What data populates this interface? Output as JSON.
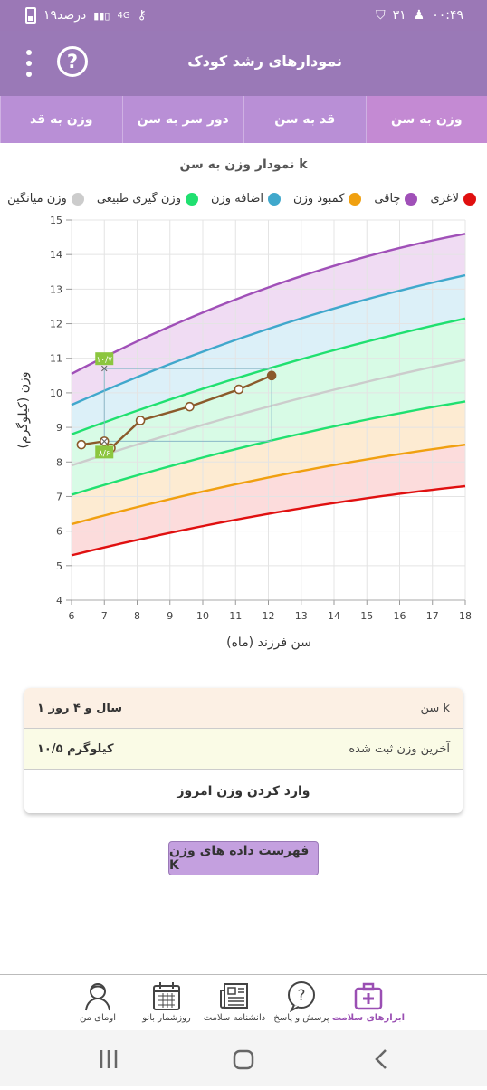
{
  "status": {
    "time": "۰۰:۴۹",
    "notif": "۳۱",
    "battery": "۱۹درصد",
    "net": "4G"
  },
  "appbar": {
    "title": "نمودارهای رشد کودک",
    "help": "?"
  },
  "tabs": [
    {
      "label": "وزن به سن",
      "active": true
    },
    {
      "label": "قد به سن",
      "active": false
    },
    {
      "label": "دور سر به سن",
      "active": false
    },
    {
      "label": "وزن به قد",
      "active": false
    }
  ],
  "chart_title": "نمودار وزن به سن k",
  "legend": [
    {
      "label": "لاغری",
      "color": "#e01010"
    },
    {
      "label": "چاقی",
      "color": "#a050b8"
    },
    {
      "label": "کمبود وزن",
      "color": "#f0a010"
    },
    {
      "label": "اضافه وزن",
      "color": "#40a8cc"
    },
    {
      "label": "وزن گیری طبیعی",
      "color": "#20e070"
    },
    {
      "label": "وزن میانگین",
      "color": "#cccccc"
    }
  ],
  "chart_data": {
    "type": "line",
    "xlabel": "سن فرزند (ماه)",
    "ylabel": "وزن (کیلوگرم)",
    "xlim": [
      6,
      18
    ],
    "ylim": [
      4,
      15
    ],
    "x_ticks": [
      "6",
      "7",
      "8",
      "9",
      "10",
      "11",
      "12",
      "13",
      "14",
      "15",
      "16",
      "17",
      "18"
    ],
    "y_ticks": [
      "4",
      "5",
      "6",
      "7",
      "8",
      "9",
      "10",
      "11",
      "12",
      "13",
      "14",
      "15"
    ],
    "grid": true,
    "curves": [
      {
        "name": "چاقی",
        "color": "#a050b8",
        "x": [
          6,
          12,
          18
        ],
        "y": [
          10.55,
          13.05,
          14.6
        ]
      },
      {
        "name": "اضافه وزن",
        "color": "#40a8cc",
        "x": [
          6,
          12,
          18
        ],
        "y": [
          9.65,
          11.85,
          13.4
        ]
      },
      {
        "name": "وزن گیری طبیعی",
        "color": "#20e070",
        "x": [
          6,
          12,
          18
        ],
        "y": [
          8.8,
          10.7,
          12.15
        ]
      },
      {
        "name": "وزن میانگین",
        "color": "#cccccc",
        "x": [
          6,
          12,
          18
        ],
        "y": [
          7.9,
          9.6,
          10.95
        ]
      },
      {
        "name": "وزن گیری طبیعی",
        "color": "#20e070",
        "x": [
          6,
          12,
          18
        ],
        "y": [
          7.05,
          8.6,
          9.75
        ]
      },
      {
        "name": "کمبود وزن",
        "color": "#f0a010",
        "x": [
          6,
          12,
          18
        ],
        "y": [
          6.2,
          7.55,
          8.5
        ]
      },
      {
        "name": "لاغری",
        "color": "#e01010",
        "x": [
          6,
          12,
          18
        ],
        "y": [
          5.3,
          6.5,
          7.3
        ]
      }
    ],
    "bands": [
      {
        "color": "#f0dcf3"
      },
      {
        "color": "#dcf0f8"
      },
      {
        "color": "#d8fbe6"
      },
      {
        "color": "#d8fbe6"
      },
      {
        "color": "#fdebd2"
      },
      {
        "color": "#fcdcdc"
      }
    ],
    "series": [
      {
        "color": "#8b5a2b",
        "x": [
          6.3,
          7.0,
          7.2,
          8.1,
          9.6,
          11.1,
          12.1
        ],
        "y": [
          8.5,
          8.6,
          8.4,
          9.2,
          9.6,
          10.1,
          10.5
        ]
      }
    ],
    "markers": [
      {
        "label": "۱۰/۷",
        "x": 7.0,
        "y": 10.7
      },
      {
        "label": "۸/۶",
        "x": 7.0,
        "y": 8.6
      }
    ]
  },
  "card": {
    "age_label": "سن k",
    "age_value": "۱ سال و ۴ روز",
    "weight_label": "آخرین وزن ثبت شده",
    "weight_value": "۱۰/۵ کیلوگرم",
    "enter_button": "وارد کردن وزن امروز"
  },
  "list_button": "فهرست داده های وزن K",
  "bottom_nav": [
    {
      "label": "ابزارهای سلامت",
      "icon": "medical-kit-icon",
      "active": true
    },
    {
      "label": "پرسش و پاسخ",
      "icon": "question-bubble-icon",
      "active": false
    },
    {
      "label": "دانشنامه سلامت",
      "icon": "newspaper-icon",
      "active": false
    },
    {
      "label": "روزشمار بانو",
      "icon": "calendar-icon",
      "active": false
    },
    {
      "label": "اومای من",
      "icon": "user-avatar-icon",
      "active": false
    }
  ]
}
